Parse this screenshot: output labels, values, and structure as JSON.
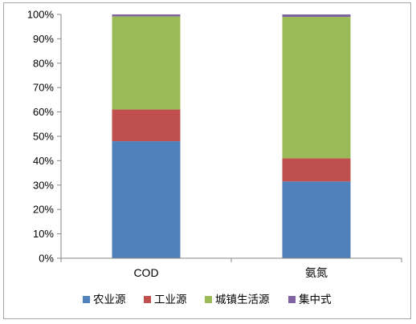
{
  "chart_data": {
    "type": "bar",
    "stacked": true,
    "percent": true,
    "categories": [
      "COD",
      "氨氮"
    ],
    "series": [
      {
        "name": "农业源",
        "color": "#4f81bd",
        "values": [
          48,
          31.5
        ]
      },
      {
        "name": "工业源",
        "color": "#c0504d",
        "values": [
          13,
          9.5
        ]
      },
      {
        "name": "城镇生活源",
        "color": "#9bbb59",
        "values": [
          38.2,
          58
        ]
      },
      {
        "name": "集中式",
        "color": "#8064a2",
        "values": [
          0.8,
          1.0
        ]
      }
    ],
    "yticks": [
      "0%",
      "10%",
      "20%",
      "30%",
      "40%",
      "50%",
      "60%",
      "70%",
      "80%",
      "90%",
      "100%"
    ],
    "ylim": [
      0,
      100
    ],
    "legend_position": "bottom",
    "grid": false
  }
}
